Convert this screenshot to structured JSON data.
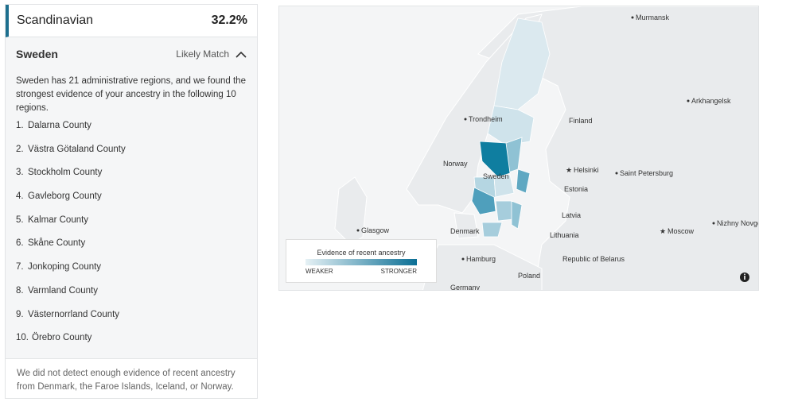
{
  "header": {
    "population": "Scandinavian",
    "percent": "32.2%"
  },
  "country": {
    "name": "Sweden",
    "match": "Likely Match",
    "description": "Sweden has 21 administrative regions, and we found the strongest evidence of your ancestry in the following 10 regions.",
    "regions": [
      {
        "rank": "1.",
        "name": "Dalarna County"
      },
      {
        "rank": "2.",
        "name": "Västra Götaland County"
      },
      {
        "rank": "3.",
        "name": "Stockholm County"
      },
      {
        "rank": "4.",
        "name": "Gavleborg County"
      },
      {
        "rank": "5.",
        "name": "Kalmar County"
      },
      {
        "rank": "6.",
        "name": "Skåne County"
      },
      {
        "rank": "7.",
        "name": "Jonkoping County"
      },
      {
        "rank": "8.",
        "name": "Varmland County"
      },
      {
        "rank": "9.",
        "name": "Västernorrland County"
      },
      {
        "rank": "10.",
        "name": "Örebro County"
      }
    ],
    "note": "We did not detect enough evidence of recent ancestry from Denmark, the Faroe Islands, Iceland, or Norway."
  },
  "map": {
    "labels": [
      "Murmansk",
      "Arkhangelsk",
      "Trondheim",
      "Finland",
      "Norway",
      "Helsinki",
      "Saint Petersburg",
      "Sweden",
      "Estonia",
      "Latvia",
      "Glasgow",
      "Denmark",
      "Lithuania",
      "Moscow",
      "Nizhny Novgorod",
      "Hamburg",
      "Republic of Belarus",
      "Poland",
      "Germany"
    ],
    "legend": {
      "title": "Evidence of recent ancestry",
      "weaker": "WEAKER",
      "stronger": "STRONGER"
    }
  }
}
